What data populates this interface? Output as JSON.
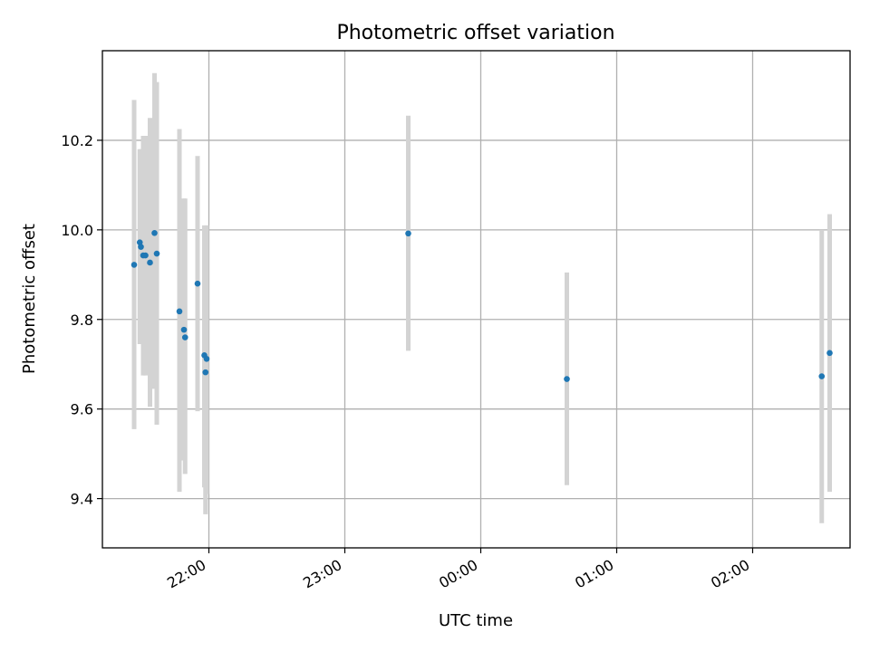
{
  "chart_data": {
    "type": "scatter",
    "title": "Photometric offset variation",
    "xlabel": "UTC time",
    "ylabel": "Photometric offset",
    "grid": true,
    "legend": "none",
    "xlim": [
      "2000-01-01T21:13:00",
      "2000-01-02T02:43:00"
    ],
    "ylim": [
      9.29,
      10.4
    ],
    "x_ticks": [
      {
        "t": "2000-01-01T22:00:00",
        "label": "22:00"
      },
      {
        "t": "2000-01-01T23:00:00",
        "label": "23:00"
      },
      {
        "t": "2000-01-02T00:00:00",
        "label": "00:00"
      },
      {
        "t": "2000-01-02T01:00:00",
        "label": "01:00"
      },
      {
        "t": "2000-01-02T02:00:00",
        "label": "02:00"
      }
    ],
    "y_ticks": [
      9.4,
      9.6,
      9.8,
      10.0,
      10.2
    ],
    "y_tick_labels": [
      "9.4",
      "9.6",
      "9.8",
      "10.0",
      "10.2"
    ],
    "colors": {
      "point": "#1f77b4",
      "errorbar": "#d3d3d3",
      "grid": "#b0b0b0"
    },
    "points": [
      {
        "t": "2000-01-01T21:27:00",
        "y": 9.922,
        "lo": 9.555,
        "hi": 10.29
      },
      {
        "t": "2000-01-01T21:29:30",
        "y": 9.972,
        "lo": 9.745,
        "hi": 10.18
      },
      {
        "t": "2000-01-01T21:30:00",
        "y": 9.962,
        "lo": 9.745,
        "hi": 10.18
      },
      {
        "t": "2000-01-01T21:31:00",
        "y": 9.943,
        "lo": 9.675,
        "hi": 10.21
      },
      {
        "t": "2000-01-01T21:32:00",
        "y": 9.943,
        "lo": 9.675,
        "hi": 10.21
      },
      {
        "t": "2000-01-01T21:34:00",
        "y": 9.927,
        "lo": 9.605,
        "hi": 10.25
      },
      {
        "t": "2000-01-01T21:36:00",
        "y": 9.993,
        "lo": 9.645,
        "hi": 10.35
      },
      {
        "t": "2000-01-01T21:37:00",
        "y": 9.947,
        "lo": 9.565,
        "hi": 10.33
      },
      {
        "t": "2000-01-01T21:47:00",
        "y": 9.818,
        "lo": 9.415,
        "hi": 10.225
      },
      {
        "t": "2000-01-01T21:49:00",
        "y": 9.777,
        "lo": 9.485,
        "hi": 10.07
      },
      {
        "t": "2000-01-01T21:49:30",
        "y": 9.76,
        "lo": 9.455,
        "hi": 10.07
      },
      {
        "t": "2000-01-01T21:55:00",
        "y": 9.88,
        "lo": 9.595,
        "hi": 10.165
      },
      {
        "t": "2000-01-01T21:58:00",
        "y": 9.72,
        "lo": 9.425,
        "hi": 10.01
      },
      {
        "t": "2000-01-01T21:58:30",
        "y": 9.682,
        "lo": 9.365,
        "hi": 10.0
      },
      {
        "t": "2000-01-01T21:59:00",
        "y": 9.712,
        "lo": 9.41,
        "hi": 10.01
      },
      {
        "t": "2000-01-01T23:28:00",
        "y": 9.992,
        "lo": 9.73,
        "hi": 10.255
      },
      {
        "t": "2000-01-02T00:38:00",
        "y": 9.667,
        "lo": 9.43,
        "hi": 9.905
      },
      {
        "t": "2000-01-02T02:30:30",
        "y": 9.673,
        "lo": 9.345,
        "hi": 10.0
      },
      {
        "t": "2000-01-02T02:34:00",
        "y": 9.725,
        "lo": 9.415,
        "hi": 10.035
      }
    ]
  }
}
